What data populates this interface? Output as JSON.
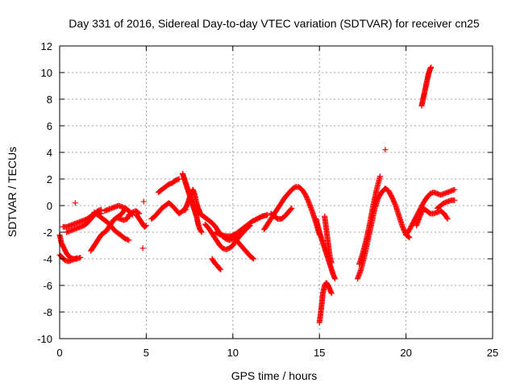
{
  "chart_data": {
    "type": "scatter",
    "title": "Day 331 of 2016, Sidereal Day-to-day VTEC variation (SDTVAR) for receiver cn25",
    "xlabel": "GPS time / hours",
    "ylabel": "SDTVAR / TECUs",
    "xlim": [
      0,
      25
    ],
    "ylim": [
      -10,
      12
    ],
    "xticks": [
      0,
      5,
      10,
      15,
      20,
      25
    ],
    "yticks": [
      -10,
      -8,
      -6,
      -4,
      -2,
      0,
      2,
      4,
      6,
      8,
      10,
      12
    ],
    "grid": true,
    "marker": "+",
    "color": "#ff0000",
    "series": [
      {
        "name": "segment-a",
        "x": [
          0.0,
          0.1,
          0.25,
          0.4,
          0.6,
          0.8,
          1.0,
          1.2
        ],
        "y": [
          -2.2,
          -2.8,
          -3.2,
          -3.6,
          -3.9,
          -4.0,
          -4.0,
          -3.9
        ]
      },
      {
        "name": "segment-b",
        "x": [
          0.0,
          0.15,
          0.3,
          0.5,
          0.7,
          0.9,
          1.0
        ],
        "y": [
          -3.7,
          -3.9,
          -4.1,
          -4.2,
          -4.1,
          -4.0,
          -3.95
        ]
      },
      {
        "name": "segment-c",
        "x": [
          0.2,
          0.4,
          0.6,
          0.8,
          1.0,
          1.2,
          1.4,
          1.6,
          1.8,
          2.0,
          2.2,
          2.4
        ],
        "y": [
          -1.6,
          -1.6,
          -1.5,
          -1.4,
          -1.3,
          -1.2,
          -1.1,
          -1.0,
          -0.8,
          -0.6,
          -0.5,
          -0.6
        ]
      },
      {
        "name": "segment-d",
        "x": [
          0.4,
          0.6,
          0.8,
          1.0,
          1.2,
          1.4,
          1.6,
          1.8,
          2.0,
          2.2,
          2.4
        ],
        "y": [
          -2.0,
          -1.9,
          -1.8,
          -1.7,
          -1.6,
          -1.5,
          -1.3,
          -1.0,
          -0.7,
          -0.4,
          -0.3
        ]
      },
      {
        "name": "isolated-a",
        "x": [
          0.9
        ],
        "y": [
          0.2
        ]
      },
      {
        "name": "segment-e",
        "x": [
          1.8,
          1.9,
          2.0,
          2.1,
          2.2,
          2.3,
          2.4,
          2.5,
          2.6,
          2.7,
          2.8,
          2.9,
          3.0,
          3.1,
          3.2,
          3.3,
          3.4,
          3.5,
          3.6,
          3.7,
          3.8
        ],
        "y": [
          -3.4,
          -3.2,
          -3.0,
          -2.8,
          -2.6,
          -2.4,
          -2.2,
          -2.1,
          -2.0,
          -1.9,
          -1.7,
          -1.5,
          -1.3,
          -1.1,
          -1.0,
          -0.9,
          -0.8,
          -0.7,
          -0.6,
          -0.4,
          -0.2
        ]
      },
      {
        "name": "segment-f",
        "x": [
          2.0,
          2.2,
          2.4,
          2.6,
          2.8,
          3.0,
          3.2,
          3.4,
          3.6,
          3.8,
          4.0
        ],
        "y": [
          -0.5,
          -0.7,
          -0.9,
          -1.1,
          -1.3,
          -1.6,
          -1.9,
          -2.1,
          -2.3,
          -2.5,
          -2.6
        ]
      },
      {
        "name": "segment-g",
        "x": [
          2.6,
          2.8,
          3.0,
          3.2,
          3.4,
          3.6,
          3.8,
          4.0,
          4.2
        ],
        "y": [
          -0.4,
          -0.3,
          -0.2,
          -0.1,
          0.0,
          -0.1,
          -0.2,
          -0.4,
          -0.7
        ]
      },
      {
        "name": "segment-h",
        "x": [
          3.3,
          3.5,
          3.7,
          3.9,
          4.0,
          4.2,
          4.4,
          4.6
        ],
        "y": [
          -0.9,
          -1.0,
          -1.1,
          -1.0,
          -0.7,
          -0.5,
          -0.4,
          -0.6
        ]
      },
      {
        "name": "segment-i",
        "x": [
          4.4,
          4.5,
          4.6,
          4.7,
          4.8,
          4.9,
          5.0
        ],
        "y": [
          -0.7,
          -0.8,
          -1.0,
          -1.2,
          -1.4,
          -1.6,
          -1.5
        ]
      },
      {
        "name": "isolated-b",
        "x": [
          4.8,
          4.85
        ],
        "y": [
          -3.2,
          0.3
        ]
      },
      {
        "name": "segment-j",
        "x": [
          5.3,
          5.5,
          5.7,
          5.9,
          6.1,
          6.3,
          6.5,
          6.7,
          6.9,
          7.1,
          7.3
        ],
        "y": [
          -1.0,
          -0.8,
          -0.5,
          -0.2,
          0.0,
          0.2,
          0.0,
          -0.3,
          -0.6,
          -0.4,
          -0.3
        ]
      },
      {
        "name": "segment-k",
        "x": [
          5.7,
          5.9,
          6.1,
          6.3,
          6.5,
          6.7,
          6.9
        ],
        "y": [
          1.0,
          1.2,
          1.4,
          1.6,
          1.7,
          1.9,
          2.0
        ]
      },
      {
        "name": "segment-l",
        "x": [
          7.1,
          7.15,
          7.2,
          7.25,
          7.3,
          7.35,
          7.4,
          7.45,
          7.5,
          7.55,
          7.6,
          7.65,
          7.7,
          7.75,
          7.8,
          7.85,
          7.9,
          7.95,
          8.0,
          8.1,
          8.2
        ],
        "y": [
          2.4,
          2.2,
          2.0,
          1.8,
          1.6,
          1.4,
          1.2,
          1.0,
          0.8,
          0.6,
          0.4,
          0.2,
          0.0,
          -0.2,
          -0.4,
          -0.6,
          -0.8,
          -1.1,
          -1.4,
          -1.8,
          -2.0
        ]
      },
      {
        "name": "segment-m",
        "x": [
          7.2,
          7.3,
          7.4,
          7.5,
          7.6,
          7.7,
          7.8,
          7.9,
          8.0,
          8.1
        ],
        "y": [
          -0.3,
          -0.1,
          0.2,
          0.6,
          1.0,
          1.2,
          0.8,
          0.2,
          -0.2,
          -0.5
        ]
      },
      {
        "name": "segment-n",
        "x": [
          8.0,
          8.2,
          8.4,
          8.6,
          8.8,
          9.0,
          9.2,
          9.4,
          9.6,
          9.8,
          10.0,
          10.2
        ],
        "y": [
          -0.5,
          -0.7,
          -0.9,
          -1.1,
          -1.3,
          -1.6,
          -2.0,
          -2.3,
          -2.5,
          -2.6,
          -2.5,
          -2.3
        ]
      },
      {
        "name": "segment-o",
        "x": [
          8.4,
          8.6,
          8.8,
          9.0,
          9.2,
          9.4,
          9.6,
          9.8,
          10.0,
          10.2,
          10.4,
          10.6,
          10.8,
          11.0
        ],
        "y": [
          -1.4,
          -1.7,
          -2.1,
          -2.5,
          -2.9,
          -3.2,
          -3.3,
          -3.2,
          -3.0,
          -2.6,
          -2.3,
          -2.0,
          -1.7,
          -1.5
        ]
      },
      {
        "name": "segment-p",
        "x": [
          8.8,
          8.9,
          9.0,
          9.1,
          9.2,
          9.3
        ],
        "y": [
          -4.0,
          -4.2,
          -4.4,
          -4.5,
          -4.7,
          -4.8
        ]
      },
      {
        "name": "segment-q",
        "x": [
          9.0,
          9.3,
          9.6,
          9.9,
          10.2,
          10.5,
          10.8,
          11.1,
          11.4,
          11.7,
          12.0
        ],
        "y": [
          -2.0,
          -2.2,
          -2.3,
          -2.3,
          -2.1,
          -1.8,
          -1.5,
          -1.2,
          -1.0,
          -0.8,
          -0.7
        ]
      },
      {
        "name": "segment-r",
        "x": [
          10.0,
          10.2,
          10.4,
          10.6,
          10.8,
          11.0,
          11.2
        ],
        "y": [
          -2.4,
          -2.6,
          -2.9,
          -3.2,
          -3.5,
          -3.8,
          -4.0
        ]
      },
      {
        "name": "segment-s",
        "x": [
          11.8,
          12.0,
          12.2,
          12.4,
          12.6,
          12.8,
          13.0,
          13.2,
          13.4,
          13.6,
          13.8,
          14.0,
          14.2,
          14.4,
          14.6,
          14.8,
          15.0
        ],
        "y": [
          -1.8,
          -1.4,
          -1.0,
          -0.6,
          -0.2,
          0.2,
          0.6,
          0.9,
          1.2,
          1.4,
          1.4,
          1.2,
          0.8,
          0.2,
          -0.5,
          -1.3,
          -2.2
        ]
      },
      {
        "name": "segment-t",
        "x": [
          12.2,
          12.4,
          12.6,
          12.8,
          13.0,
          13.2,
          13.4
        ],
        "y": [
          -0.6,
          -0.8,
          -1.0,
          -1.0,
          -0.8,
          -0.5,
          -0.2
        ]
      },
      {
        "name": "segment-u",
        "x": [
          14.8,
          14.9,
          15.0,
          15.1,
          15.2,
          15.3,
          15.4,
          15.5,
          15.6,
          15.7,
          15.8,
          15.9
        ],
        "y": [
          -1.0,
          -1.5,
          -2.0,
          -2.4,
          -2.8,
          -3.2,
          -3.6,
          -4.0,
          -4.4,
          -4.8,
          -5.2,
          -5.5
        ]
      },
      {
        "name": "segment-v",
        "x": [
          15.0,
          15.05,
          15.1,
          15.15,
          15.2,
          15.3,
          15.4,
          15.5,
          15.6,
          15.7
        ],
        "y": [
          -8.8,
          -8.3,
          -7.8,
          -7.2,
          -6.6,
          -6.0,
          -5.8,
          -6.0,
          -6.3,
          -6.6
        ]
      },
      {
        "name": "segment-w",
        "x": [
          15.3,
          15.35,
          15.4,
          15.45,
          15.5,
          15.55,
          15.6,
          15.7
        ],
        "y": [
          -0.8,
          -1.3,
          -1.8,
          -2.3,
          -2.8,
          -3.3,
          -3.8,
          -4.3
        ]
      },
      {
        "name": "segment-x",
        "x": [
          17.2,
          17.4,
          17.6,
          17.8,
          18.0,
          18.2,
          18.4,
          18.6,
          18.8,
          19.0,
          19.2,
          19.4,
          19.6,
          19.8,
          20.0,
          20.2
        ],
        "y": [
          -5.5,
          -4.8,
          -3.8,
          -2.6,
          -1.4,
          -0.2,
          0.6,
          1.0,
          1.3,
          1.1,
          0.6,
          0.0,
          -0.8,
          -1.6,
          -2.2,
          -2.4
        ]
      },
      {
        "name": "segment-y",
        "x": [
          17.3,
          17.5,
          17.7,
          17.9,
          18.1,
          18.3,
          18.5
        ],
        "y": [
          -4.4,
          -3.6,
          -2.6,
          -1.4,
          0.0,
          1.2,
          2.2
        ]
      },
      {
        "name": "isolated-c",
        "x": [
          18.8
        ],
        "y": [
          4.2
        ]
      },
      {
        "name": "segment-z",
        "x": [
          20.0,
          20.2,
          20.4,
          20.6,
          20.8,
          21.0,
          21.2,
          21.4,
          21.6,
          21.8,
          22.0,
          22.2,
          22.4,
          22.6,
          22.8
        ],
        "y": [
          -2.2,
          -1.8,
          -1.3,
          -0.8,
          -0.3,
          0.2,
          0.6,
          0.9,
          1.0,
          0.9,
          0.8,
          0.9,
          1.0,
          1.1,
          1.2
        ]
      },
      {
        "name": "segment-aa",
        "x": [
          20.6,
          20.8,
          21.0,
          21.2,
          21.4,
          21.6,
          21.8,
          22.0,
          22.2,
          22.4
        ],
        "y": [
          -1.5,
          -0.8,
          -0.2,
          -0.4,
          -0.6,
          -0.6,
          -0.5,
          -0.4,
          -0.6,
          -1.0
        ]
      },
      {
        "name": "segment-ab",
        "x": [
          21.8,
          22.0,
          22.2,
          22.4,
          22.6,
          22.8
        ],
        "y": [
          -0.2,
          0.0,
          0.2,
          0.3,
          0.4,
          0.4
        ]
      },
      {
        "name": "segment-ac",
        "x": [
          20.9,
          20.95,
          21.0,
          21.05,
          21.1,
          21.15,
          21.2,
          21.25,
          21.3,
          21.35,
          21.4,
          21.45
        ],
        "y": [
          7.5,
          7.8,
          8.1,
          8.4,
          8.7,
          9.0,
          9.3,
          9.6,
          9.9,
          10.1,
          10.3,
          10.4
        ]
      }
    ]
  }
}
